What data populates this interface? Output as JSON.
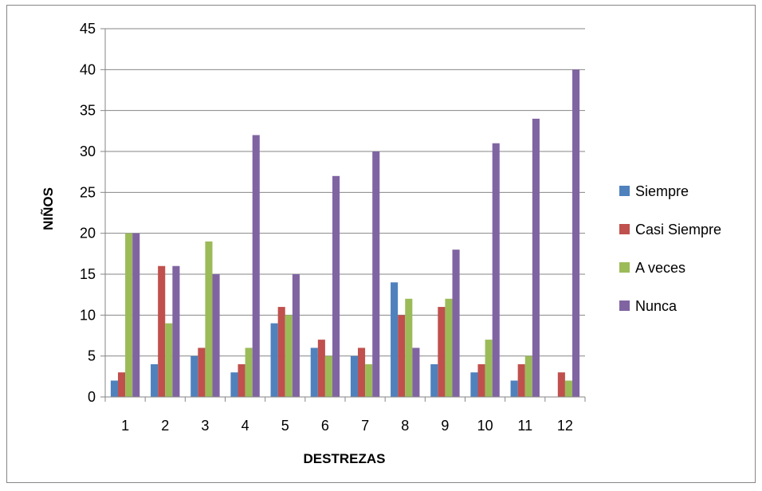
{
  "chart_data": {
    "type": "bar",
    "title": "",
    "xlabel": "DESTREZAS",
    "ylabel": "NIÑOS",
    "ylim": [
      0,
      45
    ],
    "yticks": [
      0,
      5,
      10,
      15,
      20,
      25,
      30,
      35,
      40,
      45
    ],
    "grid": true,
    "legend_position": "right",
    "categories": [
      "1",
      "2",
      "3",
      "4",
      "5",
      "6",
      "7",
      "8",
      "9",
      "10",
      "11",
      "12"
    ],
    "series": [
      {
        "name": "Siempre",
        "color": "#4F81BD",
        "values": [
          2,
          4,
          5,
          3,
          9,
          6,
          5,
          14,
          4,
          3,
          2,
          0
        ]
      },
      {
        "name": "Casi  Siempre",
        "color": "#C0504D",
        "values": [
          3,
          16,
          6,
          4,
          11,
          7,
          6,
          10,
          11,
          4,
          4,
          3
        ]
      },
      {
        "name": "A veces",
        "color": "#9BBB59",
        "values": [
          20,
          9,
          19,
          6,
          10,
          5,
          4,
          12,
          12,
          7,
          5,
          2
        ]
      },
      {
        "name": "Nunca",
        "color": "#8064A2",
        "values": [
          20,
          16,
          15,
          32,
          15,
          27,
          30,
          6,
          18,
          31,
          34,
          40
        ]
      }
    ]
  }
}
